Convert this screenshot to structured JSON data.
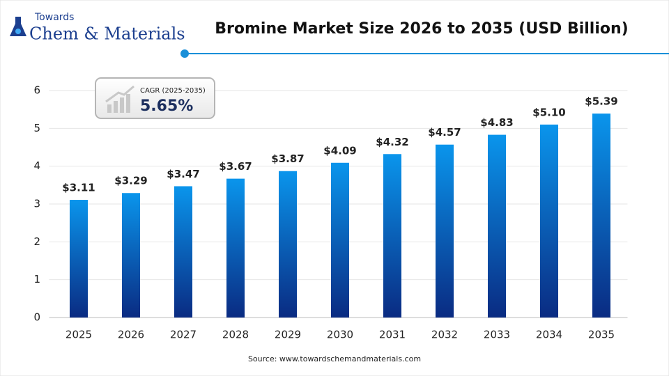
{
  "logo": {
    "top": "Towards",
    "bottom": "Chem & Materials"
  },
  "cagr": {
    "label": "CAGR (2025-2035)",
    "value": "5.65%"
  },
  "source": "Source: www.towardschemandmaterials.com",
  "chart_data": {
    "type": "bar",
    "title": "Bromine Market Size 2026 to 2035 (USD Billion)",
    "categories": [
      "2025",
      "2026",
      "2027",
      "2028",
      "2029",
      "2030",
      "2031",
      "2032",
      "2033",
      "2034",
      "2035"
    ],
    "values": [
      3.11,
      3.29,
      3.47,
      3.67,
      3.87,
      4.09,
      4.32,
      4.57,
      4.83,
      5.1,
      5.39
    ],
    "value_labels": [
      "$3.11",
      "$3.29",
      "$3.47",
      "$3.67",
      "$3.87",
      "$4.09",
      "$4.32",
      "$4.57",
      "$4.83",
      "$5.10",
      "$5.39"
    ],
    "color": "#0a8fe6",
    "ylim": [
      0,
      6
    ],
    "yticks": [
      0,
      1,
      2,
      3,
      4,
      5,
      6
    ],
    "grid": true
  }
}
